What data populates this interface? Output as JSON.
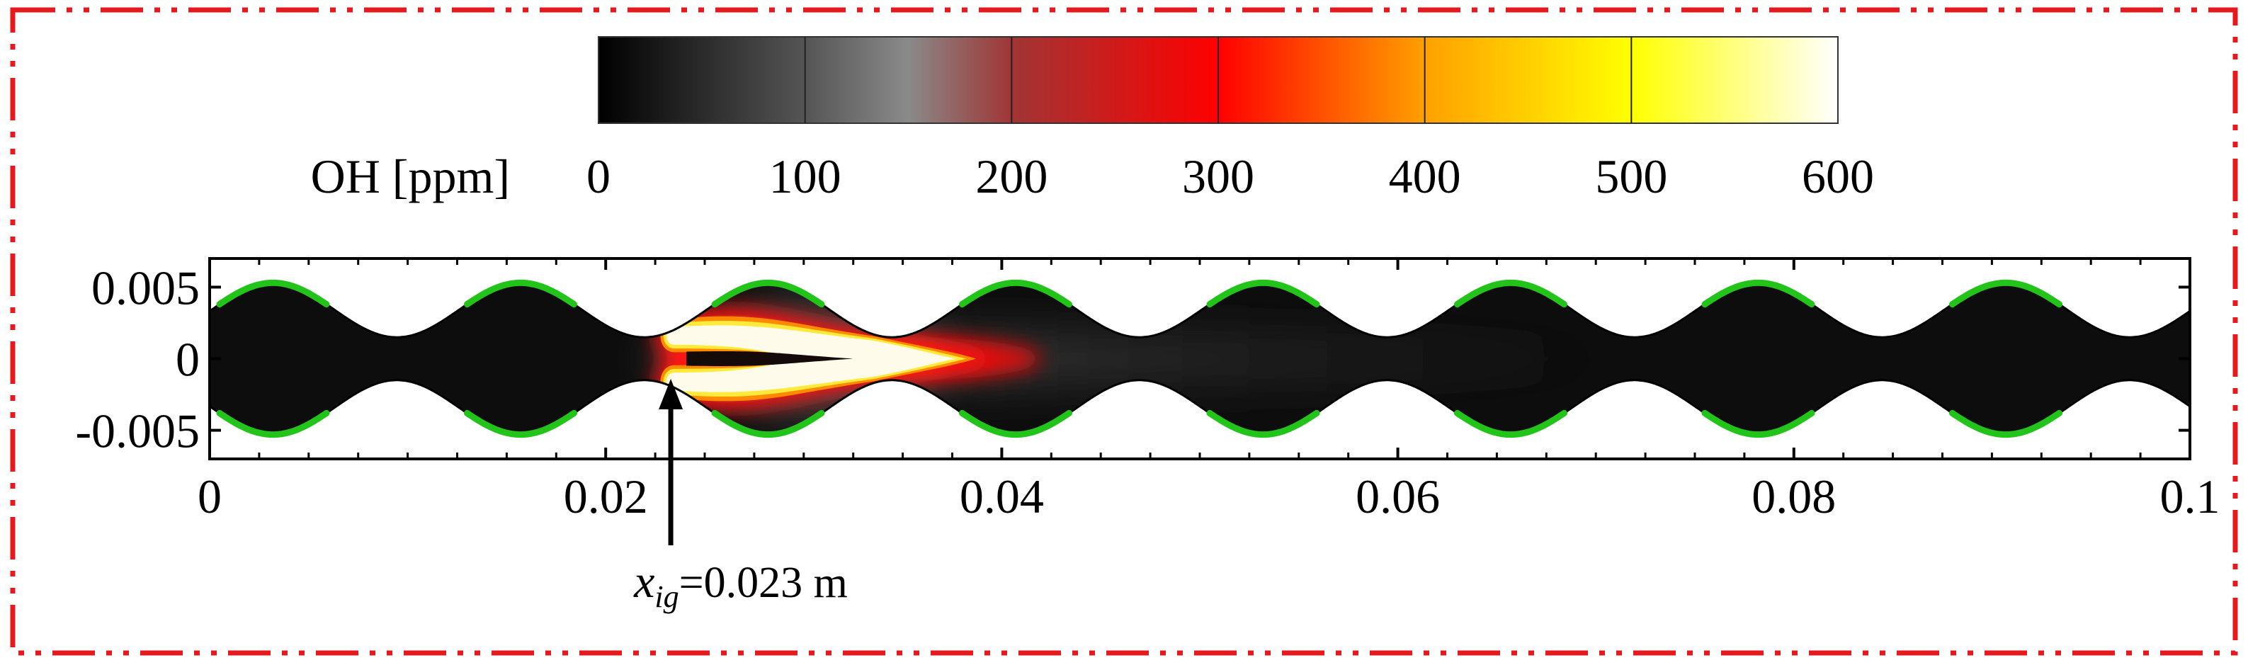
{
  "colors": {
    "frame": "#e41a1c",
    "wall_highlight": "#22c41a",
    "channel_fill": "#111111",
    "axis": "#000000"
  },
  "colorbar": {
    "label": "OH [ppm]",
    "ticks": [
      "0",
      "100",
      "200",
      "300",
      "400",
      "500",
      "600"
    ],
    "min": 0,
    "max": 600,
    "stops": [
      {
        "value": 0,
        "color": "#000000"
      },
      {
        "value": 100,
        "color": "#555555"
      },
      {
        "value": 150,
        "color": "#8a8a8a"
      },
      {
        "value": 200,
        "color": "#a03535"
      },
      {
        "value": 300,
        "color": "#ff0000"
      },
      {
        "value": 400,
        "color": "#ffa000"
      },
      {
        "value": 500,
        "color": "#ffff00"
      },
      {
        "value": 600,
        "color": "#ffffff"
      }
    ]
  },
  "chart_data": {
    "type": "heatmap",
    "title": "",
    "colorbar_label": "OH [ppm]",
    "xlabel": "",
    "ylabel": "",
    "xlim": [
      0,
      0.1
    ],
    "ylim": [
      -0.007,
      0.007
    ],
    "x_ticks": [
      "0",
      "0.02",
      "0.04",
      "0.06",
      "0.08",
      "0.1"
    ],
    "x_tick_values": [
      0,
      0.02,
      0.04,
      0.06,
      0.08,
      0.1
    ],
    "y_ticks": [
      "0.005",
      "0",
      "-0.005"
    ],
    "y_tick_values": [
      0.005,
      0,
      -0.005
    ],
    "wall": {
      "mean_half_width": 0.0015,
      "amplitude": 0.0038,
      "wavelength": 0.0125,
      "phase_crest_x": 0.0032
    },
    "flame": {
      "ignition_x": 0.023,
      "peak_OH_ppm": 600,
      "tail_end_x": 0.048,
      "branch_offset_y": 0.0016
    },
    "annotation": {
      "symbol": "x",
      "subscript": "ig",
      "text": "=0.023 m",
      "x": 0.023
    }
  }
}
